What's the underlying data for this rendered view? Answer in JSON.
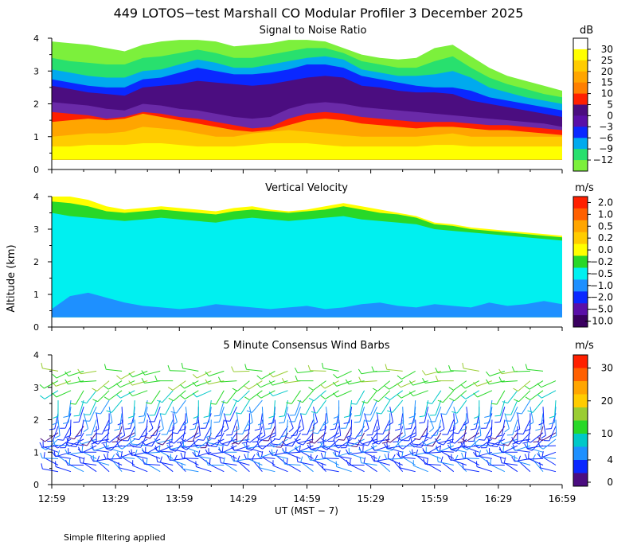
{
  "title": "449 LOTOS−test Marshall CO Modular Profiler  3 December 2025",
  "footer_note": "Simple filtering applied",
  "chart_data": [
    {
      "type": "heatmap",
      "title": "Signal to Noise Ratio",
      "xlabel": "UT  (MST − 7)",
      "ylabel": "Altitude (km)",
      "ylim": [
        0,
        4
      ],
      "yticks": [
        "0",
        "1",
        "2",
        "3",
        "4"
      ],
      "x_ticks": [
        "12:59",
        "13:29",
        "13:59",
        "14:29",
        "14:59",
        "15:29",
        "15:59",
        "16:29",
        "16:59"
      ],
      "colorbar_unit": "dB",
      "colorbar_labels": [
        "30",
        "25",
        "20",
        "15",
        "10",
        "5",
        "0",
        "−3",
        "−6",
        "−9",
        "−12"
      ],
      "colorbar_colors": [
        "#ffffff",
        "#ffff00",
        "#ffcc00",
        "#ffa500",
        "#ff7f00",
        "#ff2000",
        "#4b0d80",
        "#5a0fa8",
        "#0a28ff",
        "#00aaee",
        "#28e06e",
        "#7cf03c"
      ],
      "band_colors": [
        "#ffff00",
        "#ffcc00",
        "#ffa500",
        "#ff2000",
        "#6a2aa8",
        "#4b0d80",
        "#0a28ff",
        "#00aaee",
        "#28e06e",
        "#7cf03c"
      ],
      "band_tops": [
        [
          0.7,
          0.7,
          0.75,
          0.75,
          0.75,
          0.8,
          0.8,
          0.75,
          0.7,
          0.7,
          0.7,
          0.75,
          0.8,
          0.8,
          0.8,
          0.75,
          0.7,
          0.7,
          0.7,
          0.7,
          0.7,
          0.75,
          0.75,
          0.7,
          0.7,
          0.7,
          0.7,
          0.7,
          0.7
        ],
        [
          1.0,
          1.05,
          1.1,
          1.1,
          1.15,
          1.3,
          1.25,
          1.2,
          1.1,
          1.0,
          1.0,
          1.1,
          1.15,
          1.2,
          1.15,
          1.1,
          1.05,
          1.0,
          1.0,
          1.0,
          1.0,
          1.05,
          1.1,
          1.0,
          1.0,
          1.0,
          1.0,
          1.0,
          1.0
        ],
        [
          1.45,
          1.5,
          1.55,
          1.5,
          1.55,
          1.7,
          1.6,
          1.5,
          1.4,
          1.3,
          1.2,
          1.15,
          1.2,
          1.35,
          1.5,
          1.55,
          1.5,
          1.4,
          1.35,
          1.3,
          1.25,
          1.3,
          1.3,
          1.25,
          1.2,
          1.2,
          1.15,
          1.1,
          1.05
        ],
        [
          1.75,
          1.7,
          1.65,
          1.55,
          1.6,
          1.75,
          1.7,
          1.6,
          1.55,
          1.45,
          1.35,
          1.25,
          1.3,
          1.55,
          1.7,
          1.75,
          1.7,
          1.6,
          1.55,
          1.5,
          1.45,
          1.45,
          1.45,
          1.4,
          1.35,
          1.35,
          1.3,
          1.25,
          1.2
        ],
        [
          2.05,
          2.0,
          1.95,
          1.85,
          1.8,
          2.0,
          1.95,
          1.85,
          1.8,
          1.7,
          1.6,
          1.55,
          1.6,
          1.85,
          2.0,
          2.05,
          2.0,
          1.9,
          1.85,
          1.8,
          1.75,
          1.7,
          1.65,
          1.6,
          1.55,
          1.5,
          1.45,
          1.4,
          1.3
        ],
        [
          2.55,
          2.45,
          2.35,
          2.3,
          2.25,
          2.5,
          2.55,
          2.6,
          2.7,
          2.65,
          2.6,
          2.55,
          2.6,
          2.7,
          2.8,
          2.85,
          2.8,
          2.55,
          2.5,
          2.4,
          2.35,
          2.35,
          2.3,
          2.1,
          2.0,
          1.9,
          1.8,
          1.7,
          1.6
        ],
        [
          2.75,
          2.65,
          2.55,
          2.5,
          2.5,
          2.75,
          2.8,
          2.95,
          3.1,
          3.0,
          2.9,
          2.9,
          2.95,
          3.05,
          3.2,
          3.2,
          3.1,
          2.85,
          2.75,
          2.65,
          2.55,
          2.5,
          2.5,
          2.4,
          2.2,
          2.1,
          2.0,
          1.9,
          1.8
        ],
        [
          3.05,
          2.95,
          2.85,
          2.8,
          2.8,
          3.0,
          3.05,
          3.2,
          3.35,
          3.25,
          3.1,
          3.1,
          3.2,
          3.3,
          3.4,
          3.45,
          3.35,
          3.05,
          2.95,
          2.85,
          2.85,
          2.9,
          3.0,
          2.8,
          2.5,
          2.35,
          2.2,
          2.1,
          2.0
        ],
        [
          3.4,
          3.3,
          3.25,
          3.2,
          3.2,
          3.4,
          3.45,
          3.55,
          3.65,
          3.55,
          3.4,
          3.4,
          3.5,
          3.6,
          3.7,
          3.7,
          3.55,
          3.3,
          3.2,
          3.1,
          3.1,
          3.3,
          3.45,
          3.1,
          2.8,
          2.6,
          2.45,
          2.3,
          2.2
        ],
        [
          3.9,
          3.85,
          3.8,
          3.7,
          3.6,
          3.8,
          3.9,
          3.95,
          3.95,
          3.9,
          3.75,
          3.8,
          3.85,
          3.95,
          3.95,
          3.9,
          3.7,
          3.5,
          3.4,
          3.35,
          3.4,
          3.7,
          3.8,
          3.45,
          3.1,
          2.85,
          2.7,
          2.55,
          2.4
        ]
      ]
    },
    {
      "type": "heatmap",
      "title": "Vertical Velocity",
      "ylim": [
        0,
        4
      ],
      "yticks": [
        "0",
        "1",
        "2",
        "3",
        "4"
      ],
      "colorbar_unit": "m/s",
      "colorbar_labels": [
        "2.0",
        "1.0",
        "0.5",
        "0.2",
        "0.0",
        "−0.2",
        "−0.5",
        "−1.0",
        "−2.0",
        "−5.0",
        "−10.0"
      ],
      "colorbar_colors": [
        "#ff2000",
        "#ff6000",
        "#ffa500",
        "#ffcc00",
        "#ffff00",
        "#28d828",
        "#00f0f0",
        "#1e90ff",
        "#0a28ff",
        "#5a0fa8",
        "#3a0060"
      ],
      "band_colors": [
        "#1e90ff",
        "#00f0f0",
        "#28d828",
        "#ffff00"
      ],
      "band_tops": [
        [
          0.55,
          0.95,
          1.05,
          0.9,
          0.75,
          0.65,
          0.6,
          0.55,
          0.6,
          0.7,
          0.65,
          0.6,
          0.55,
          0.6,
          0.65,
          0.55,
          0.6,
          0.7,
          0.75,
          0.65,
          0.6,
          0.7,
          0.65,
          0.6,
          0.75,
          0.65,
          0.7,
          0.8,
          0.7
        ],
        [
          3.5,
          3.4,
          3.35,
          3.3,
          3.25,
          3.3,
          3.35,
          3.3,
          3.25,
          3.2,
          3.3,
          3.35,
          3.3,
          3.25,
          3.3,
          3.35,
          3.4,
          3.3,
          3.25,
          3.2,
          3.15,
          3.0,
          2.95,
          2.9,
          2.85,
          2.8,
          2.75,
          2.7,
          2.65
        ],
        [
          3.85,
          3.8,
          3.7,
          3.55,
          3.5,
          3.55,
          3.6,
          3.55,
          3.5,
          3.45,
          3.55,
          3.6,
          3.55,
          3.5,
          3.55,
          3.6,
          3.7,
          3.6,
          3.5,
          3.45,
          3.35,
          3.15,
          3.1,
          3.0,
          2.95,
          2.9,
          2.85,
          2.8,
          2.75
        ],
        [
          4.0,
          4.0,
          3.9,
          3.7,
          3.6,
          3.65,
          3.7,
          3.65,
          3.6,
          3.55,
          3.65,
          3.7,
          3.6,
          3.55,
          3.6,
          3.7,
          3.8,
          3.7,
          3.6,
          3.5,
          3.4,
          3.2,
          3.15,
          3.05,
          3.0,
          2.95,
          2.9,
          2.85,
          2.8
        ]
      ]
    },
    {
      "type": "scatter",
      "title": "5 Minute Consensus Wind Barbs",
      "ylim": [
        0,
        4
      ],
      "yticks": [
        "0",
        "1",
        "2",
        "3",
        "4"
      ],
      "colorbar_unit": "m/s",
      "colorbar_labels": [
        "30",
        "20",
        "10",
        "4",
        "0"
      ],
      "colorbar_colors": [
        "#ff2000",
        "#ff6000",
        "#ffa500",
        "#ffcc00",
        "#9acd32",
        "#28d828",
        "#00c8c8",
        "#1e90ff",
        "#0a28ff",
        "#4b0d80"
      ],
      "barb_levels": [
        {
          "alt": 0.4,
          "speed": 3,
          "dir": 300
        },
        {
          "alt": 0.6,
          "speed": 3,
          "dir": 290
        },
        {
          "alt": 0.8,
          "speed": 3,
          "dir": 280
        },
        {
          "alt": 1.0,
          "speed": 3,
          "dir": 270
        },
        {
          "alt": 1.2,
          "speed": 3,
          "dir": 260
        },
        {
          "alt": 1.4,
          "speed": 3,
          "dir": 240
        },
        {
          "alt": 1.6,
          "speed": 2,
          "dir": 220
        },
        {
          "alt": 1.8,
          "speed": 2,
          "dir": 200
        },
        {
          "alt": 2.0,
          "speed": 3,
          "dir": 190
        },
        {
          "alt": 2.2,
          "speed": 3,
          "dir": 180
        },
        {
          "alt": 2.4,
          "speed": 4,
          "dir": 185
        },
        {
          "alt": 2.6,
          "speed": 6,
          "dir": 200
        },
        {
          "alt": 2.9,
          "speed": 8,
          "dir": 230
        },
        {
          "alt": 3.2,
          "speed": 9,
          "dir": 250
        },
        {
          "alt": 3.5,
          "speed": 9,
          "dir": 260
        }
      ]
    }
  ]
}
